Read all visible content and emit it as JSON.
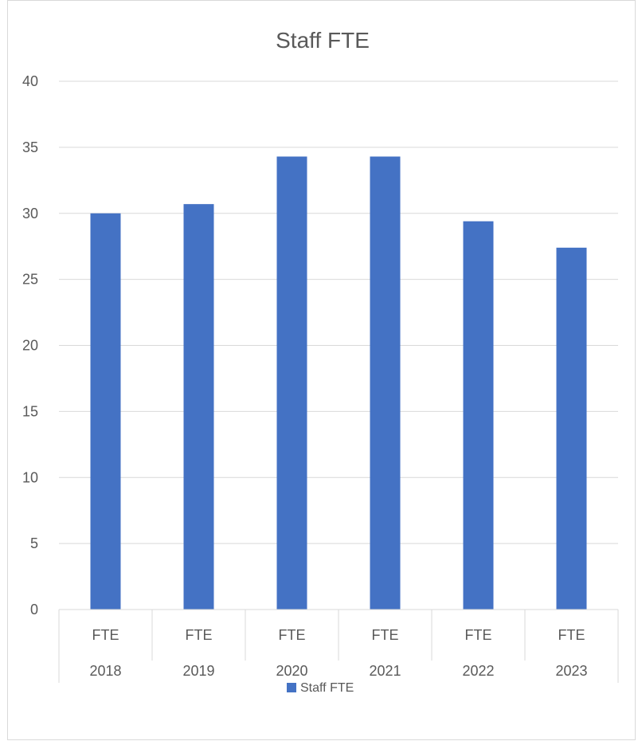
{
  "chart_data": {
    "type": "bar",
    "title": "Staff FTE",
    "categories": [
      {
        "label": "FTE",
        "group": "2018"
      },
      {
        "label": "FTE",
        "group": "2019"
      },
      {
        "label": "FTE",
        "group": "2020"
      },
      {
        "label": "FTE",
        "group": "2021"
      },
      {
        "label": "FTE",
        "group": "2022"
      },
      {
        "label": "FTE",
        "group": "2023"
      }
    ],
    "series": [
      {
        "name": "Staff FTE",
        "color": "#4472c4",
        "values": [
          30.0,
          30.7,
          34.3,
          34.3,
          29.4,
          27.4
        ]
      }
    ],
    "ylim": [
      0,
      40
    ],
    "yticks": [
      "0",
      "5",
      "10",
      "15",
      "20",
      "25",
      "30",
      "35",
      "40"
    ],
    "grid": true,
    "legend_position": "bottom",
    "colors": {
      "bar": "#4472c4",
      "grid": "#d9d9d9",
      "text": "#595959"
    }
  }
}
